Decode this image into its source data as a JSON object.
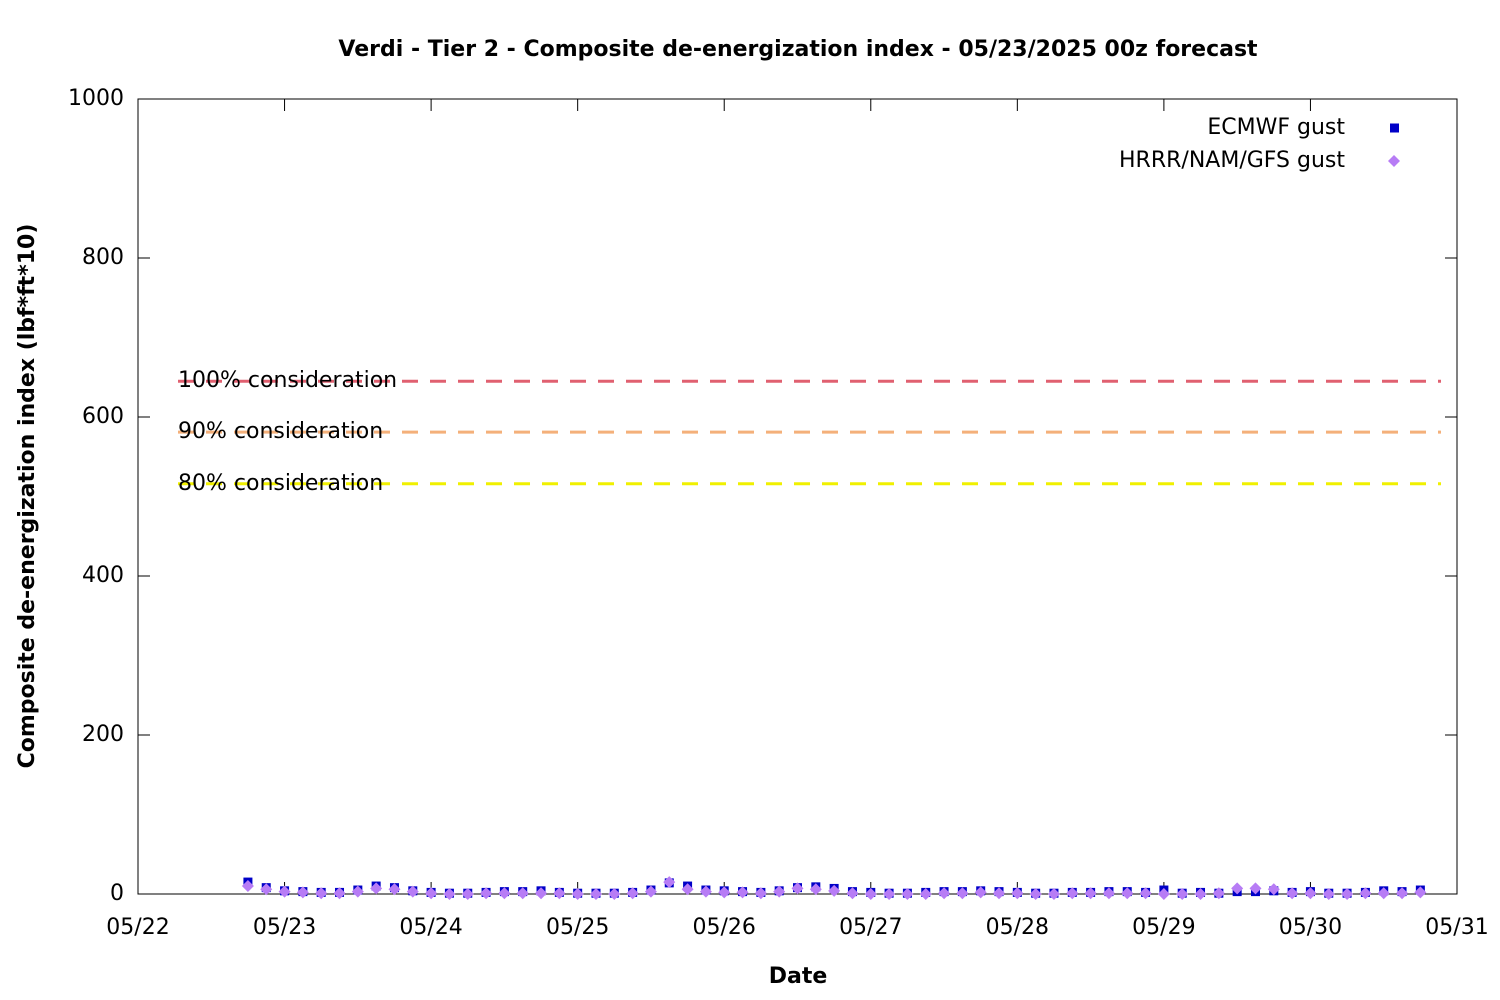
{
  "chart_data": {
    "type": "scatter",
    "title": "Verdi - Tier 2 - Composite de-energization index - 05/23/2025 00z forecast",
    "xlabel": "Date",
    "ylabel": "Composite de-energization index (lbf*ft*10)",
    "x": [
      22.75,
      22.875,
      23,
      23.125,
      23.25,
      23.375,
      23.5,
      23.625,
      23.75,
      23.875,
      24,
      24.125,
      24.25,
      24.375,
      24.5,
      24.625,
      24.75,
      24.875,
      25,
      25.125,
      25.25,
      25.375,
      25.5,
      25.625,
      25.75,
      25.875,
      26,
      26.125,
      26.25,
      26.375,
      26.5,
      26.625,
      26.75,
      26.875,
      27,
      27.125,
      27.25,
      27.375,
      27.5,
      27.625,
      27.75,
      27.875,
      28,
      28.125,
      28.25,
      28.375,
      28.5,
      28.625,
      28.75,
      28.875,
      29,
      29.125,
      29.25,
      29.375,
      29.5,
      29.625,
      29.75,
      29.875,
      30,
      30.125,
      30.25,
      30.375,
      30.5,
      30.625,
      30.75
    ],
    "series": [
      {
        "name": "ECMWF gust",
        "color": "#0000c8",
        "marker": "square",
        "values": [
          15,
          8,
          4,
          3,
          2,
          2,
          5,
          10,
          8,
          4,
          2,
          1,
          1,
          2,
          3,
          3,
          4,
          2,
          1,
          1,
          1,
          2,
          5,
          14,
          10,
          5,
          4,
          3,
          2,
          4,
          8,
          9,
          7,
          3,
          2,
          1,
          1,
          2,
          3,
          3,
          4,
          3,
          2,
          1,
          1,
          2,
          2,
          3,
          3,
          2,
          5,
          1,
          2,
          1,
          3,
          3,
          4,
          2,
          3,
          1,
          1,
          2,
          4,
          3,
          5
        ]
      },
      {
        "name": "HRRR/NAM/GFS gust",
        "color": "#b77cf5",
        "marker": "diamond",
        "values": [
          10,
          6,
          3,
          2,
          1,
          1,
          3,
          7,
          6,
          3,
          1,
          0,
          0,
          1,
          1,
          1,
          1,
          1,
          0,
          0,
          0,
          1,
          3,
          15,
          6,
          3,
          2,
          2,
          1,
          3,
          7,
          6,
          4,
          1,
          0,
          0,
          0,
          0,
          1,
          1,
          2,
          1,
          1,
          0,
          0,
          1,
          1,
          1,
          1,
          1,
          0,
          0,
          0,
          1,
          7,
          7,
          6,
          1,
          1,
          0,
          0,
          1,
          1,
          1,
          2
        ]
      }
    ],
    "thresholds": [
      {
        "label": "100% consideration",
        "value": 645,
        "color": "#e06070"
      },
      {
        "label": "90% consideration",
        "value": 581,
        "color": "#f4b07a"
      },
      {
        "label": "80% consideration",
        "value": 516,
        "color": "#f0f000"
      }
    ],
    "xlim": [
      22,
      31
    ],
    "xticks": [
      {
        "value": 22,
        "label": "05/22"
      },
      {
        "value": 23,
        "label": "05/23"
      },
      {
        "value": 24,
        "label": "05/24"
      },
      {
        "value": 25,
        "label": "05/25"
      },
      {
        "value": 26,
        "label": "05/26"
      },
      {
        "value": 27,
        "label": "05/27"
      },
      {
        "value": 28,
        "label": "05/28"
      },
      {
        "value": 29,
        "label": "05/29"
      },
      {
        "value": 30,
        "label": "05/30"
      },
      {
        "value": 31,
        "label": "05/31"
      }
    ],
    "ylim": [
      0,
      1000
    ],
    "yticks": [
      0,
      200,
      400,
      600,
      800,
      1000
    ],
    "legend": "top-right"
  }
}
